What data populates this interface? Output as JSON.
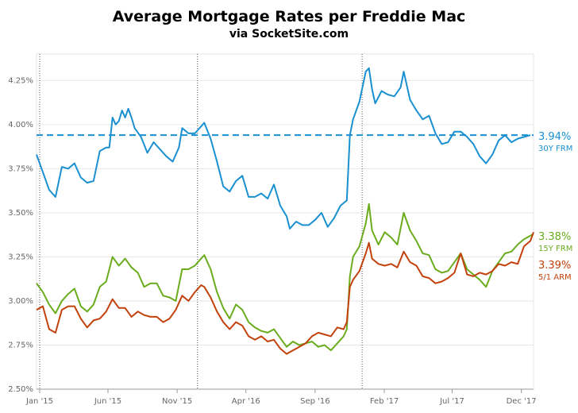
{
  "title": "Average Mortgage Rates per Freddie Mac",
  "subtitle": "via SocketSite.com",
  "chart_data": {
    "type": "line",
    "title": "Average Mortgage Rates per Freddie Mac",
    "subtitle": "via SocketSite.com",
    "x_tick_labels": [
      "Jan '15",
      "Jun '15",
      "Nov '15",
      "Apr '16",
      "Sep '16",
      "Feb '17",
      "Jul '17",
      "Dec '17"
    ],
    "x_tick_dates": [
      "2015-01-01",
      "2015-06-01",
      "2015-11-01",
      "2016-04-01",
      "2016-09-01",
      "2017-02-01",
      "2017-07-01",
      "2017-12-01"
    ],
    "xlim": [
      "2014-12-25",
      "2017-12-28"
    ],
    "ylim": [
      2.5,
      4.4
    ],
    "y_ticks": [
      2.5,
      2.75,
      3.0,
      3.25,
      3.5,
      3.75,
      4.0,
      4.25
    ],
    "y_tick_labels": [
      "2.50%",
      "2.75%",
      "3.00%",
      "3.25%",
      "3.50%",
      "3.75%",
      "4.00%",
      "4.25%"
    ],
    "grid": true,
    "vertical_markers": [
      "2015-01-01",
      "2015-12-16",
      "2016-12-14"
    ],
    "reference_line": {
      "value": 3.94,
      "series": "30Y FRM",
      "style": "dashed"
    },
    "series": [
      {
        "name": "30Y FRM",
        "color": "#1a90d0",
        "end_label": "3.94%",
        "points": [
          [
            "2014-12-25",
            3.83
          ],
          [
            "2015-01-08",
            3.73
          ],
          [
            "2015-01-22",
            3.63
          ],
          [
            "2015-02-05",
            3.59
          ],
          [
            "2015-02-19",
            3.76
          ],
          [
            "2015-03-05",
            3.75
          ],
          [
            "2015-03-19",
            3.78
          ],
          [
            "2015-04-02",
            3.7
          ],
          [
            "2015-04-16",
            3.67
          ],
          [
            "2015-04-30",
            3.68
          ],
          [
            "2015-05-14",
            3.85
          ],
          [
            "2015-05-28",
            3.87
          ],
          [
            "2015-06-04",
            3.87
          ],
          [
            "2015-06-11",
            4.04
          ],
          [
            "2015-06-18",
            4.0
          ],
          [
            "2015-06-25",
            4.02
          ],
          [
            "2015-07-02",
            4.08
          ],
          [
            "2015-07-09",
            4.04
          ],
          [
            "2015-07-16",
            4.09
          ],
          [
            "2015-07-23",
            4.04
          ],
          [
            "2015-07-30",
            3.98
          ],
          [
            "2015-08-13",
            3.93
          ],
          [
            "2015-08-27",
            3.84
          ],
          [
            "2015-09-10",
            3.9
          ],
          [
            "2015-09-24",
            3.86
          ],
          [
            "2015-10-08",
            3.82
          ],
          [
            "2015-10-22",
            3.79
          ],
          [
            "2015-11-05",
            3.87
          ],
          [
            "2015-11-12",
            3.98
          ],
          [
            "2015-11-26",
            3.95
          ],
          [
            "2015-12-10",
            3.95
          ],
          [
            "2015-12-17",
            3.97
          ],
          [
            "2015-12-31",
            4.01
          ],
          [
            "2016-01-14",
            3.92
          ],
          [
            "2016-01-28",
            3.79
          ],
          [
            "2016-02-11",
            3.65
          ],
          [
            "2016-02-25",
            3.62
          ],
          [
            "2016-03-10",
            3.68
          ],
          [
            "2016-03-24",
            3.71
          ],
          [
            "2016-04-07",
            3.59
          ],
          [
            "2016-04-21",
            3.59
          ],
          [
            "2016-05-05",
            3.61
          ],
          [
            "2016-05-19",
            3.58
          ],
          [
            "2016-06-02",
            3.66
          ],
          [
            "2016-06-16",
            3.54
          ],
          [
            "2016-06-30",
            3.48
          ],
          [
            "2016-07-07",
            3.41
          ],
          [
            "2016-07-21",
            3.45
          ],
          [
            "2016-08-04",
            3.43
          ],
          [
            "2016-08-18",
            3.43
          ],
          [
            "2016-09-01",
            3.46
          ],
          [
            "2016-09-15",
            3.5
          ],
          [
            "2016-09-29",
            3.42
          ],
          [
            "2016-10-13",
            3.47
          ],
          [
            "2016-10-27",
            3.54
          ],
          [
            "2016-11-10",
            3.57
          ],
          [
            "2016-11-17",
            3.94
          ],
          [
            "2016-11-24",
            4.03
          ],
          [
            "2016-12-08",
            4.13
          ],
          [
            "2016-12-22",
            4.3
          ],
          [
            "2016-12-29",
            4.32
          ],
          [
            "2017-01-05",
            4.2
          ],
          [
            "2017-01-12",
            4.12
          ],
          [
            "2017-01-26",
            4.19
          ],
          [
            "2017-02-09",
            4.17
          ],
          [
            "2017-02-23",
            4.16
          ],
          [
            "2017-03-09",
            4.21
          ],
          [
            "2017-03-16",
            4.3
          ],
          [
            "2017-03-30",
            4.14
          ],
          [
            "2017-04-13",
            4.08
          ],
          [
            "2017-04-27",
            4.03
          ],
          [
            "2017-05-11",
            4.05
          ],
          [
            "2017-05-25",
            3.95
          ],
          [
            "2017-06-08",
            3.89
          ],
          [
            "2017-06-22",
            3.9
          ],
          [
            "2017-07-06",
            3.96
          ],
          [
            "2017-07-20",
            3.96
          ],
          [
            "2017-08-03",
            3.93
          ],
          [
            "2017-08-17",
            3.89
          ],
          [
            "2017-08-31",
            3.82
          ],
          [
            "2017-09-14",
            3.78
          ],
          [
            "2017-09-28",
            3.83
          ],
          [
            "2017-10-12",
            3.91
          ],
          [
            "2017-10-26",
            3.94
          ],
          [
            "2017-11-09",
            3.9
          ],
          [
            "2017-11-23",
            3.92
          ],
          [
            "2017-12-07",
            3.93
          ],
          [
            "2017-12-21",
            3.94
          ]
        ]
      },
      {
        "name": "15Y FRM",
        "color": "#6aac1e",
        "end_label": "3.38%",
        "points": [
          [
            "2014-12-25",
            3.1
          ],
          [
            "2015-01-08",
            3.05
          ],
          [
            "2015-01-22",
            2.98
          ],
          [
            "2015-02-05",
            2.93
          ],
          [
            "2015-02-19",
            3.0
          ],
          [
            "2015-03-05",
            3.04
          ],
          [
            "2015-03-19",
            3.07
          ],
          [
            "2015-04-02",
            2.97
          ],
          [
            "2015-04-16",
            2.94
          ],
          [
            "2015-04-30",
            2.98
          ],
          [
            "2015-05-14",
            3.08
          ],
          [
            "2015-05-28",
            3.11
          ],
          [
            "2015-06-11",
            3.25
          ],
          [
            "2015-06-25",
            3.2
          ],
          [
            "2015-07-09",
            3.24
          ],
          [
            "2015-07-23",
            3.19
          ],
          [
            "2015-08-06",
            3.16
          ],
          [
            "2015-08-20",
            3.08
          ],
          [
            "2015-09-03",
            3.1
          ],
          [
            "2015-09-17",
            3.1
          ],
          [
            "2015-10-01",
            3.03
          ],
          [
            "2015-10-15",
            3.02
          ],
          [
            "2015-10-29",
            3.0
          ],
          [
            "2015-11-12",
            3.18
          ],
          [
            "2015-11-26",
            3.18
          ],
          [
            "2015-12-10",
            3.2
          ],
          [
            "2015-12-24",
            3.24
          ],
          [
            "2015-12-31",
            3.26
          ],
          [
            "2016-01-14",
            3.18
          ],
          [
            "2016-01-28",
            3.05
          ],
          [
            "2016-02-11",
            2.96
          ],
          [
            "2016-02-25",
            2.9
          ],
          [
            "2016-03-10",
            2.98
          ],
          [
            "2016-03-24",
            2.95
          ],
          [
            "2016-04-07",
            2.88
          ],
          [
            "2016-04-21",
            2.85
          ],
          [
            "2016-05-05",
            2.83
          ],
          [
            "2016-05-19",
            2.82
          ],
          [
            "2016-06-02",
            2.84
          ],
          [
            "2016-06-16",
            2.79
          ],
          [
            "2016-06-30",
            2.74
          ],
          [
            "2016-07-14",
            2.77
          ],
          [
            "2016-07-28",
            2.75
          ],
          [
            "2016-08-11",
            2.76
          ],
          [
            "2016-08-25",
            2.77
          ],
          [
            "2016-09-08",
            2.74
          ],
          [
            "2016-09-22",
            2.75
          ],
          [
            "2016-10-06",
            2.72
          ],
          [
            "2016-10-20",
            2.76
          ],
          [
            "2016-11-03",
            2.8
          ],
          [
            "2016-11-10",
            2.84
          ],
          [
            "2016-11-17",
            3.14
          ],
          [
            "2016-11-24",
            3.25
          ],
          [
            "2016-12-08",
            3.31
          ],
          [
            "2016-12-22",
            3.44
          ],
          [
            "2016-12-29",
            3.55
          ],
          [
            "2017-01-05",
            3.4
          ],
          [
            "2017-01-19",
            3.32
          ],
          [
            "2017-02-02",
            3.39
          ],
          [
            "2017-02-16",
            3.36
          ],
          [
            "2017-03-02",
            3.32
          ],
          [
            "2017-03-16",
            3.5
          ],
          [
            "2017-03-30",
            3.4
          ],
          [
            "2017-04-13",
            3.34
          ],
          [
            "2017-04-27",
            3.27
          ],
          [
            "2017-05-11",
            3.26
          ],
          [
            "2017-05-25",
            3.18
          ],
          [
            "2017-06-08",
            3.16
          ],
          [
            "2017-06-22",
            3.17
          ],
          [
            "2017-07-06",
            3.22
          ],
          [
            "2017-07-20",
            3.27
          ],
          [
            "2017-08-03",
            3.18
          ],
          [
            "2017-08-17",
            3.15
          ],
          [
            "2017-08-31",
            3.12
          ],
          [
            "2017-09-14",
            3.08
          ],
          [
            "2017-09-28",
            3.17
          ],
          [
            "2017-10-12",
            3.22
          ],
          [
            "2017-10-26",
            3.27
          ],
          [
            "2017-11-09",
            3.28
          ],
          [
            "2017-11-23",
            3.32
          ],
          [
            "2017-12-07",
            3.35
          ],
          [
            "2017-12-28",
            3.38
          ]
        ]
      },
      {
        "name": "5/1 ARM",
        "color": "#c2410c",
        "end_label": "3.39%",
        "points": [
          [
            "2014-12-25",
            2.95
          ],
          [
            "2015-01-08",
            2.97
          ],
          [
            "2015-01-22",
            2.84
          ],
          [
            "2015-02-05",
            2.82
          ],
          [
            "2015-02-19",
            2.95
          ],
          [
            "2015-03-05",
            2.97
          ],
          [
            "2015-03-19",
            2.97
          ],
          [
            "2015-04-02",
            2.9
          ],
          [
            "2015-04-16",
            2.85
          ],
          [
            "2015-04-30",
            2.89
          ],
          [
            "2015-05-14",
            2.9
          ],
          [
            "2015-05-28",
            2.94
          ],
          [
            "2015-06-11",
            3.01
          ],
          [
            "2015-06-25",
            2.96
          ],
          [
            "2015-07-09",
            2.96
          ],
          [
            "2015-07-23",
            2.91
          ],
          [
            "2015-08-06",
            2.94
          ],
          [
            "2015-08-20",
            2.92
          ],
          [
            "2015-09-03",
            2.91
          ],
          [
            "2015-09-17",
            2.91
          ],
          [
            "2015-10-01",
            2.88
          ],
          [
            "2015-10-15",
            2.9
          ],
          [
            "2015-10-29",
            2.95
          ],
          [
            "2015-11-12",
            3.03
          ],
          [
            "2015-11-26",
            3.0
          ],
          [
            "2015-12-10",
            3.05
          ],
          [
            "2015-12-24",
            3.09
          ],
          [
            "2015-12-31",
            3.08
          ],
          [
            "2016-01-14",
            3.02
          ],
          [
            "2016-01-28",
            2.94
          ],
          [
            "2016-02-11",
            2.88
          ],
          [
            "2016-02-25",
            2.84
          ],
          [
            "2016-03-10",
            2.88
          ],
          [
            "2016-03-24",
            2.86
          ],
          [
            "2016-04-07",
            2.8
          ],
          [
            "2016-04-21",
            2.78
          ],
          [
            "2016-05-05",
            2.8
          ],
          [
            "2016-05-19",
            2.77
          ],
          [
            "2016-06-02",
            2.78
          ],
          [
            "2016-06-16",
            2.73
          ],
          [
            "2016-06-30",
            2.7
          ],
          [
            "2016-07-14",
            2.72
          ],
          [
            "2016-07-28",
            2.74
          ],
          [
            "2016-08-11",
            2.76
          ],
          [
            "2016-08-25",
            2.8
          ],
          [
            "2016-09-08",
            2.82
          ],
          [
            "2016-09-22",
            2.81
          ],
          [
            "2016-10-06",
            2.8
          ],
          [
            "2016-10-20",
            2.85
          ],
          [
            "2016-11-03",
            2.84
          ],
          [
            "2016-11-10",
            2.88
          ],
          [
            "2016-11-17",
            3.08
          ],
          [
            "2016-11-24",
            3.12
          ],
          [
            "2016-12-08",
            3.17
          ],
          [
            "2016-12-22",
            3.27
          ],
          [
            "2016-12-29",
            3.33
          ],
          [
            "2017-01-05",
            3.24
          ],
          [
            "2017-01-19",
            3.21
          ],
          [
            "2017-02-02",
            3.2
          ],
          [
            "2017-02-16",
            3.21
          ],
          [
            "2017-03-02",
            3.19
          ],
          [
            "2017-03-16",
            3.28
          ],
          [
            "2017-03-30",
            3.22
          ],
          [
            "2017-04-13",
            3.2
          ],
          [
            "2017-04-27",
            3.14
          ],
          [
            "2017-05-11",
            3.13
          ],
          [
            "2017-05-25",
            3.1
          ],
          [
            "2017-06-08",
            3.11
          ],
          [
            "2017-06-22",
            3.13
          ],
          [
            "2017-07-06",
            3.16
          ],
          [
            "2017-07-20",
            3.27
          ],
          [
            "2017-08-03",
            3.15
          ],
          [
            "2017-08-17",
            3.14
          ],
          [
            "2017-08-31",
            3.16
          ],
          [
            "2017-09-14",
            3.15
          ],
          [
            "2017-09-28",
            3.17
          ],
          [
            "2017-10-12",
            3.21
          ],
          [
            "2017-10-26",
            3.2
          ],
          [
            "2017-11-09",
            3.22
          ],
          [
            "2017-11-23",
            3.21
          ],
          [
            "2017-12-07",
            3.31
          ],
          [
            "2017-12-21",
            3.34
          ],
          [
            "2017-12-28",
            3.39
          ]
        ]
      }
    ]
  },
  "end_labels": [
    {
      "value": "3.94%",
      "name": "30Y FRM",
      "color": "#1a90d0"
    },
    {
      "value": "3.38%",
      "name": "15Y FRM",
      "color": "#6aac1e"
    },
    {
      "value": "3.39%",
      "name": "5/1 ARM",
      "color": "#c2410c"
    }
  ]
}
